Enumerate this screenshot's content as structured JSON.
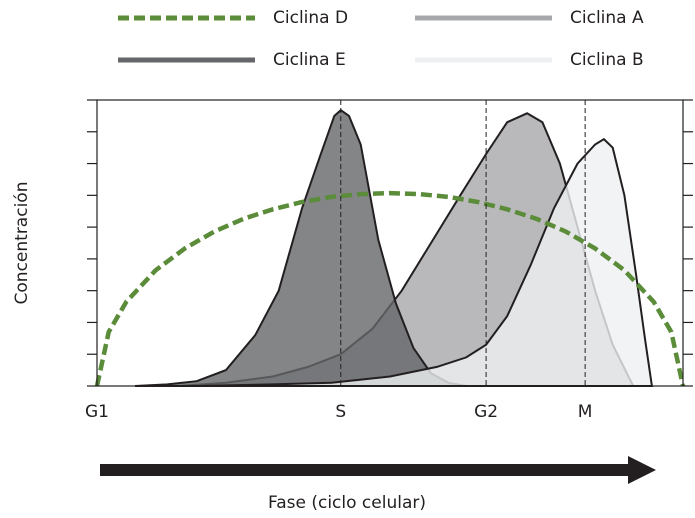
{
  "chart_data": {
    "type": "area",
    "xlabel": "Fase (ciclo celular)",
    "ylabel": "Concentración",
    "xlim": [
      0,
      100
    ],
    "xticks": [
      {
        "value": 0,
        "label": "G1"
      },
      {
        "value": 41.6,
        "label": "S"
      },
      {
        "value": 66.4,
        "label": "G2"
      },
      {
        "value": 83.3,
        "label": "M"
      }
    ],
    "ylim": [
      0,
      9
    ],
    "yticks": [
      0,
      1,
      2,
      3,
      4,
      5,
      6,
      7,
      8,
      9
    ],
    "series": [
      {
        "name": "Ciclina D",
        "color": "#5b8c3a",
        "dashed": true,
        "x": [
          0,
          2,
          5,
          10,
          15,
          20,
          25,
          30,
          35,
          40,
          45,
          50,
          55,
          60,
          65,
          70,
          75,
          80,
          85,
          90,
          95,
          98,
          100
        ],
        "values": [
          0,
          1.7,
          2.65,
          3.64,
          4.33,
          4.86,
          5.26,
          5.56,
          5.79,
          5.95,
          6.04,
          6.07,
          6.04,
          5.95,
          5.79,
          5.56,
          5.26,
          4.86,
          4.33,
          3.64,
          2.65,
          1.7,
          0
        ]
      },
      {
        "name": "Ciclina A",
        "color": "#a7a8ab",
        "dashed": false,
        "x": [
          14,
          22,
          30,
          36,
          41.6,
          47,
          52,
          57,
          62,
          66.4,
          70,
          73.4,
          76,
          79,
          82,
          85,
          88,
          91.5
        ],
        "values": [
          0,
          0.1,
          0.3,
          0.6,
          1.0,
          1.8,
          3.0,
          4.5,
          6.0,
          7.3,
          8.3,
          8.58,
          8.3,
          7.0,
          5.0,
          3.0,
          1.3,
          0
        ]
      },
      {
        "name": "Ciclina E",
        "color": "#656669",
        "dashed": false,
        "x": [
          6.5,
          12,
          17,
          22,
          27,
          31,
          35,
          38,
          40.5,
          41.6,
          43,
          45,
          48,
          51,
          54,
          57,
          60,
          63
        ],
        "values": [
          0,
          0.05,
          0.15,
          0.5,
          1.6,
          3.0,
          5.6,
          7.2,
          8.5,
          8.68,
          8.5,
          7.6,
          4.6,
          2.6,
          1.2,
          0.4,
          0.1,
          0
        ]
      },
      {
        "name": "Ciclina B",
        "color": "#eef0f1",
        "dashed": false,
        "x": [
          17,
          30,
          40,
          50,
          58,
          63,
          66.4,
          70,
          74,
          78,
          82,
          85,
          86.5,
          88,
          90,
          92,
          93.5,
          94.7
        ],
        "values": [
          0,
          0.05,
          0.1,
          0.3,
          0.6,
          0.9,
          1.3,
          2.2,
          3.8,
          5.6,
          7.0,
          7.6,
          7.77,
          7.5,
          6.0,
          3.5,
          1.5,
          0
        ]
      }
    ]
  }
}
